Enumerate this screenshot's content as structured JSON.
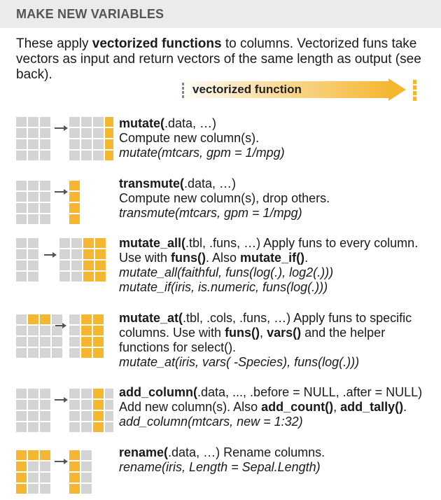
{
  "header": {
    "title": "MAKE NEW VARIABLES"
  },
  "intro": {
    "p1": "These apply ",
    "bold": "vectorized functions",
    "p2": " to columns. Vectorized funs take vectors as input and return vectors of the same length as output (see back)."
  },
  "banner": {
    "label": "vectorized function"
  },
  "colors": {
    "gray": "#d4d4d4",
    "orange": "#f5b731",
    "arrow": "#555555"
  },
  "entries": [
    {
      "name": "mutate(",
      "sig": ".data, …)",
      "desc": "Compute new column(s).",
      "example": "mutate(mtcars, gpm = 1/mpg)"
    },
    {
      "name": "transmute(",
      "sig": ".data, …)",
      "desc": "Compute new column(s), drop others.",
      "example": "transmute(mtcars, gpm = 1/mpg)"
    },
    {
      "name": "mutate_all(",
      "sig": ".tbl, .funs, …)",
      "desc1": " Apply funs to every column. Use with ",
      "b1": "funs()",
      "desc2": ". Also ",
      "b2": "mutate_if()",
      "desc3": ".",
      "example1": "mutate_all(faithful, funs(log(.), log2(.)))",
      "example2": "mutate_if(iris, is.numeric, funs(log(.)))"
    },
    {
      "name": "mutate_at(",
      "sig": ".tbl, .cols, .funs, …)",
      "desc1": " Apply funs to specific columns. Use with ",
      "b1": "funs()",
      "desc2": ", ",
      "b2": "vars()",
      "desc3": " and the helper functions for select().",
      "example": "mutate_at(iris, vars( -Species), funs(log(.)))"
    },
    {
      "name": "add_column(",
      "sig": ".data, ..., .before = NULL, .after = NULL)",
      "desc1": " Add new column(s). Also ",
      "b1": "add_count()",
      "desc2": ", ",
      "b2": "add_tally()",
      "desc3": ". ",
      "example": "add_column(mtcars, new = 1:32)"
    },
    {
      "name": "rename(",
      "sig": ".data, …)",
      "desc": " Rename columns.",
      "example": "rename(iris, Length = Sepal.Length)"
    }
  ]
}
